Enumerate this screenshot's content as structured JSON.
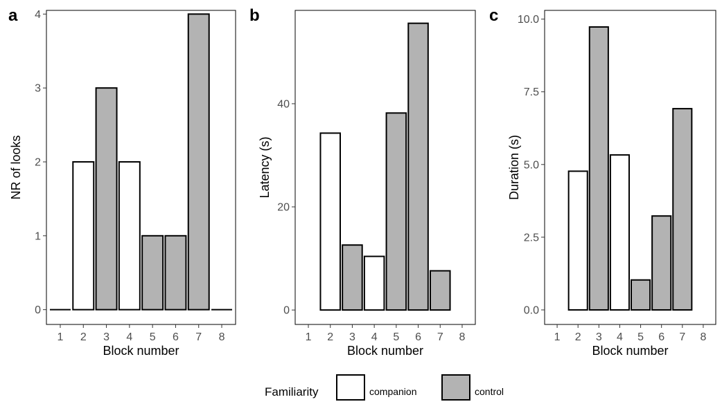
{
  "colors": {
    "companion": "#ffffff",
    "control": "#b3b3b3",
    "outline": "#000000"
  },
  "legend": {
    "title": "Familiarity",
    "items": [
      {
        "label": "companion",
        "key": "companion"
      },
      {
        "label": "control",
        "key": "control"
      }
    ]
  },
  "chart_data": [
    {
      "type": "bar",
      "panel": "a",
      "xlabel": "Block number",
      "ylabel": "NR of looks",
      "categories": [
        "1",
        "2",
        "3",
        "4",
        "5",
        "6",
        "7",
        "8"
      ],
      "values": [
        0,
        2,
        3,
        2,
        1,
        1,
        4,
        0
      ],
      "groups": [
        null,
        "companion",
        "control",
        "companion",
        "control",
        "control",
        "control",
        null
      ],
      "ylim": [
        -0.2,
        4.05
      ],
      "yticks": [
        0,
        1,
        2,
        3,
        4
      ],
      "ytick_labels": [
        "0",
        "1",
        "2",
        "3",
        "4"
      ],
      "zero_lines": [
        1,
        8
      ]
    },
    {
      "type": "bar",
      "panel": "b",
      "xlabel": "Block number",
      "ylabel": "Latency (s)",
      "categories": [
        "1",
        "2",
        "3",
        "4",
        "5",
        "6",
        "7",
        "8"
      ],
      "values": [
        null,
        34.3,
        12.6,
        10.4,
        38.2,
        55.6,
        7.6,
        null
      ],
      "groups": [
        null,
        "companion",
        "control",
        "companion",
        "control",
        "control",
        "control",
        null
      ],
      "ylim": [
        -2.8,
        58.1
      ],
      "yticks": [
        0,
        20,
        40
      ],
      "ytick_labels": [
        "0",
        "20",
        "40"
      ],
      "zero_lines": []
    },
    {
      "type": "bar",
      "panel": "c",
      "xlabel": "Block number",
      "ylabel": "Duration (s)",
      "categories": [
        "1",
        "2",
        "3",
        "4",
        "5",
        "6",
        "7",
        "8"
      ],
      "values": [
        null,
        4.77,
        9.73,
        5.33,
        1.03,
        3.23,
        6.92,
        null
      ],
      "groups": [
        null,
        "companion",
        "control",
        "companion",
        "control",
        "control",
        "control",
        null
      ],
      "ylim": [
        -0.5,
        10.3
      ],
      "yticks": [
        0,
        2.5,
        5,
        7.5,
        10
      ],
      "ytick_labels": [
        "0.0",
        "2.5",
        "5.0",
        "7.5",
        "10.0"
      ],
      "zero_lines": []
    }
  ]
}
